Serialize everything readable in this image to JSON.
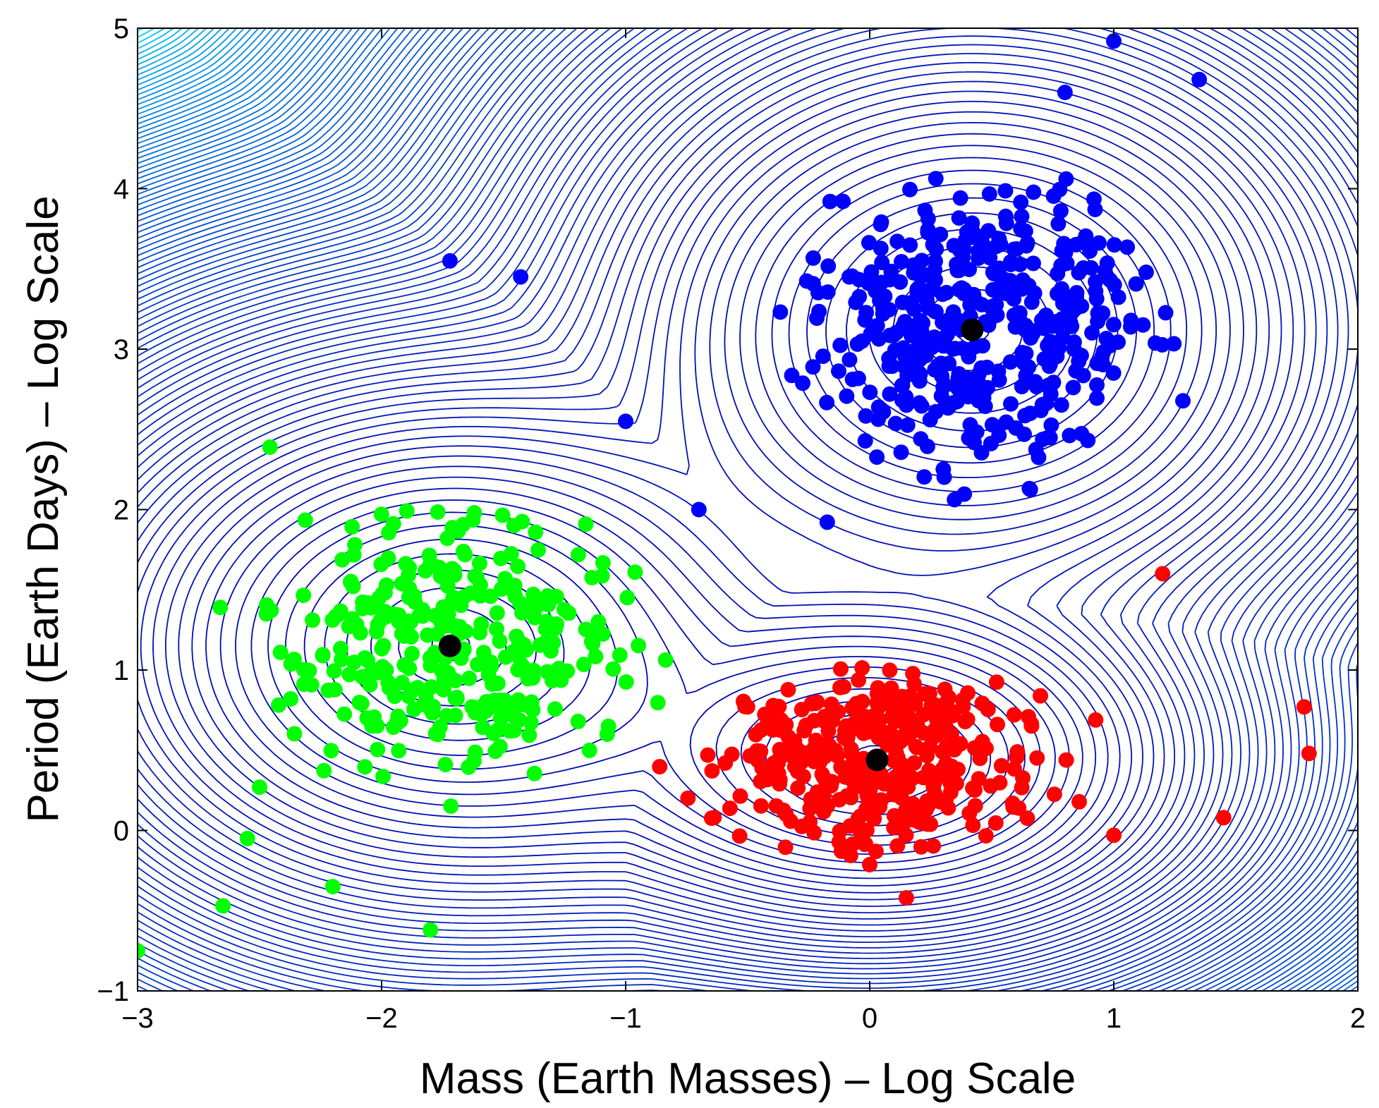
{
  "chart_data": {
    "type": "scatter",
    "title": "",
    "xlabel": "Mass (Earth Masses) – Log Scale",
    "ylabel": "Period (Earth Days) – Log Scale",
    "xlim": [
      -3,
      2
    ],
    "ylim": [
      -1,
      5
    ],
    "x_ticks": [
      -3,
      -2,
      -1,
      0,
      1,
      2
    ],
    "y_ticks": [
      -1,
      0,
      1,
      2,
      3,
      4,
      5
    ],
    "x_tick_labels": [
      "−3",
      "−2",
      "−1",
      "0",
      "1",
      "2"
    ],
    "y_tick_labels": [
      "−1",
      "0",
      "1",
      "2",
      "3",
      "4",
      "5"
    ],
    "grid": false,
    "legend": "none",
    "background": "contour density lines (blue to cyan)",
    "clusters": [
      {
        "color": "#0000ff",
        "center": [
          0.42,
          3.12
        ],
        "spread": [
          0.45,
          0.55
        ],
        "count": 430,
        "outliers": [
          [
            -1.72,
            3.55
          ],
          [
            -1.43,
            3.45
          ],
          [
            1.0,
            4.92
          ],
          [
            1.35,
            4.68
          ],
          [
            -1.0,
            2.55
          ],
          [
            -0.7,
            2.0
          ],
          [
            0.8,
            4.6
          ]
        ]
      },
      {
        "color": "#00ff00",
        "center": [
          -1.72,
          1.15
        ],
        "spread": [
          0.45,
          0.5
        ],
        "count": 330,
        "outliers": [
          [
            -3.0,
            -0.75
          ],
          [
            -2.65,
            -0.47
          ],
          [
            -2.2,
            -0.35
          ],
          [
            -1.8,
            -0.62
          ],
          [
            -2.5,
            0.27
          ],
          [
            -2.55,
            -0.05
          ]
        ]
      },
      {
        "color": "#ff0000",
        "center": [
          0.03,
          0.44
        ],
        "spread": [
          0.4,
          0.35
        ],
        "count": 360,
        "outliers": [
          [
            1.78,
            0.77
          ],
          [
            1.8,
            0.48
          ],
          [
            1.45,
            0.08
          ],
          [
            0.15,
            -0.42
          ],
          [
            1.0,
            -0.03
          ],
          [
            1.2,
            1.6
          ]
        ]
      }
    ],
    "centroids": [
      {
        "x": 0.42,
        "y": 3.12,
        "color": "#000000"
      },
      {
        "x": -1.72,
        "y": 1.15,
        "color": "#000000"
      },
      {
        "x": 0.03,
        "y": 0.44,
        "color": "#000000"
      }
    ]
  }
}
